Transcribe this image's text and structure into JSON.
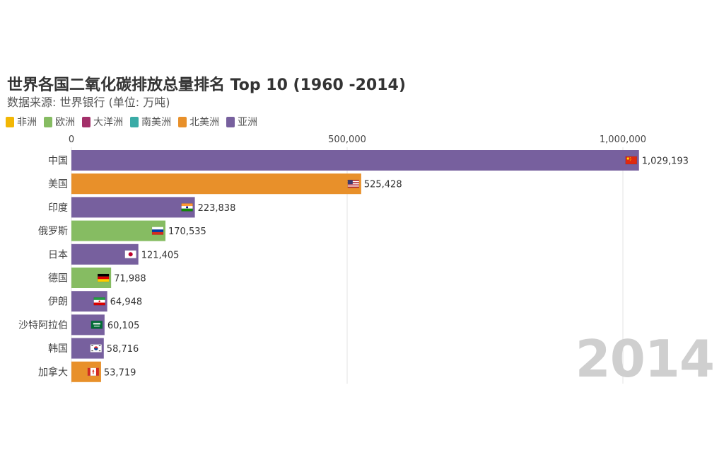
{
  "title": "世界各国二氧化碳排放总量排名 Top 10 (1960 -2014)",
  "subtitle": "数据来源: 世界银行 (单位: 万吨)",
  "legend": [
    {
      "label": "非洲",
      "color": "#f2b705"
    },
    {
      "label": "欧洲",
      "color": "#86bc62"
    },
    {
      "label": "大洋洲",
      "color": "#a3306a"
    },
    {
      "label": "南美洲",
      "color": "#3aaba6"
    },
    {
      "label": "北美洲",
      "color": "#e8902a"
    },
    {
      "label": "亚洲",
      "color": "#77609e"
    }
  ],
  "year": "2014",
  "chart_data": {
    "type": "bar",
    "orientation": "horizontal",
    "title": "世界各国二氧化碳排放总量排名 Top 10 (1960 -2014)",
    "subtitle": "数据来源: 世界银行 (单位: 万吨)",
    "xlim": [
      0,
      1030000
    ],
    "ticks": [
      {
        "value": 0,
        "label": "0"
      },
      {
        "value": 500000,
        "label": "500,000"
      },
      {
        "value": 1000000,
        "label": "1,000,000"
      }
    ],
    "grid": true,
    "legend_position": "top-left",
    "bars": [
      {
        "category": "中国",
        "value": 1029193,
        "label": "1,029,193",
        "region": "亚洲",
        "color": "#77609e",
        "flag": "cn-flag-icon"
      },
      {
        "category": "美国",
        "value": 525428,
        "label": "525,428",
        "region": "北美洲",
        "color": "#e8902a",
        "flag": "us-flag-icon"
      },
      {
        "category": "印度",
        "value": 223838,
        "label": "223,838",
        "region": "亚洲",
        "color": "#77609e",
        "flag": "in-flag-icon"
      },
      {
        "category": "俄罗斯",
        "value": 170535,
        "label": "170,535",
        "region": "欧洲",
        "color": "#86bc62",
        "flag": "ru-flag-icon"
      },
      {
        "category": "日本",
        "value": 121405,
        "label": "121,405",
        "region": "亚洲",
        "color": "#77609e",
        "flag": "jp-flag-icon"
      },
      {
        "category": "德国",
        "value": 71988,
        "label": "71,988",
        "region": "欧洲",
        "color": "#86bc62",
        "flag": "de-flag-icon"
      },
      {
        "category": "伊朗",
        "value": 64948,
        "label": "64,948",
        "region": "亚洲",
        "color": "#77609e",
        "flag": "ir-flag-icon"
      },
      {
        "category": "沙特阿拉伯",
        "value": 60105,
        "label": "60,105",
        "region": "亚洲",
        "color": "#77609e",
        "flag": "sa-flag-icon"
      },
      {
        "category": "韩国",
        "value": 58716,
        "label": "58,716",
        "region": "亚洲",
        "color": "#77609e",
        "flag": "kr-flag-icon"
      },
      {
        "category": "加拿大",
        "value": 53719,
        "label": "53,719",
        "region": "北美洲",
        "color": "#e8902a",
        "flag": "ca-flag-icon"
      }
    ]
  }
}
